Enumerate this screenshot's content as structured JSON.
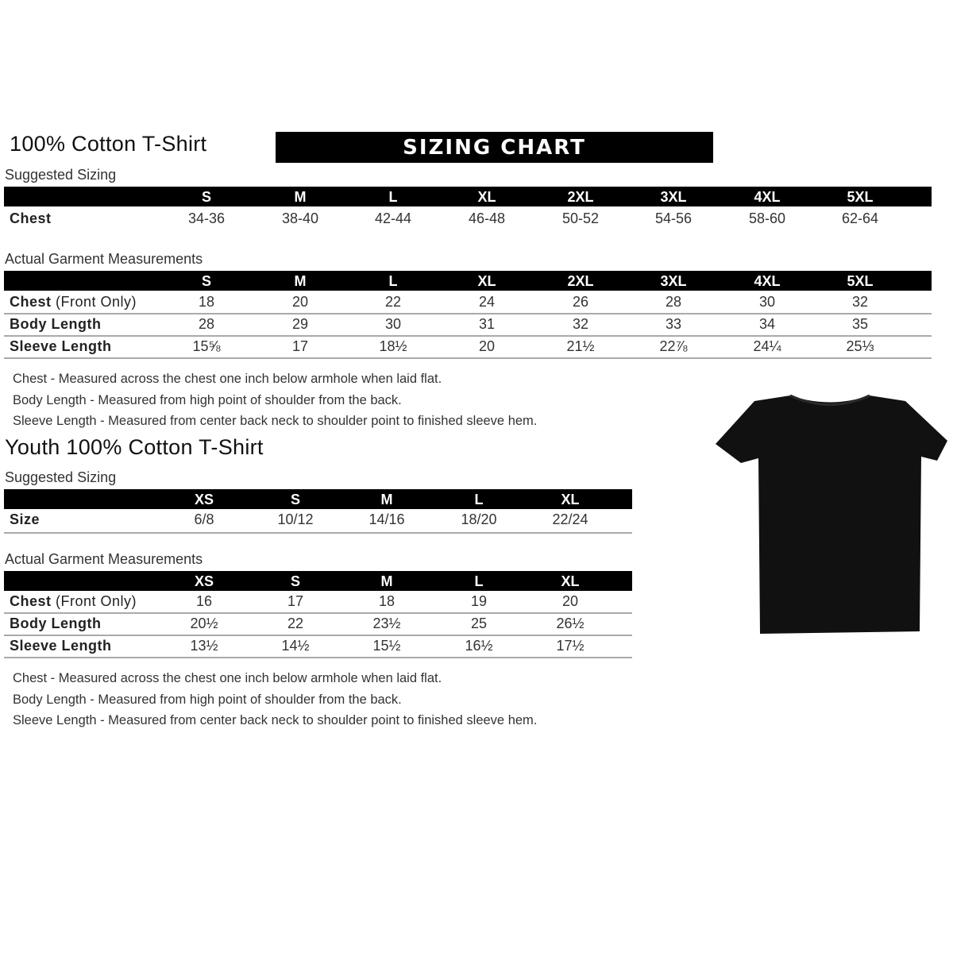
{
  "banner": "SIZING CHART",
  "adult": {
    "title": "100% Cotton T-Shirt",
    "suggested_label": "Suggested Sizing",
    "sizes": [
      "S",
      "M",
      "L",
      "XL",
      "2XL",
      "3XL",
      "4XL",
      "5XL"
    ],
    "chest": {
      "label": "Chest",
      "values": [
        "34-36",
        "38-40",
        "42-44",
        "46-48",
        "50-52",
        "54-56",
        "58-60",
        "62-64"
      ]
    },
    "actual_label": "Actual Garment Measurements",
    "rows": [
      {
        "label": "Chest",
        "label_note": " (Front Only)",
        "values": [
          "18",
          "20",
          "22",
          "24",
          "26",
          "28",
          "30",
          "32"
        ]
      },
      {
        "label": "Body Length",
        "label_note": "",
        "values": [
          "28",
          "29",
          "30",
          "31",
          "32",
          "33",
          "34",
          "35"
        ]
      },
      {
        "label": "Sleeve Length",
        "label_note": "",
        "values": [
          "15⅝",
          "17",
          "18½",
          "20",
          "21½",
          "22⅞",
          "24¼",
          "25⅓"
        ]
      }
    ],
    "notes": [
      "Chest - Measured across the chest one inch below armhole when laid flat.",
      "Body Length - Measured from high point of shoulder from the back.",
      "Sleeve Length - Measured from center back neck to shoulder point to finished sleeve hem."
    ]
  },
  "youth": {
    "title": "Youth 100% Cotton T-Shirt",
    "suggested_label": "Suggested Sizing",
    "sizes": [
      "XS",
      "S",
      "M",
      "L",
      "XL"
    ],
    "size_row": {
      "label": "Size",
      "values": [
        "6/8",
        "10/12",
        "14/16",
        "18/20",
        "22/24"
      ]
    },
    "actual_label": "Actual Garment Measurements",
    "rows": [
      {
        "label": "Chest",
        "label_note": " (Front Only)",
        "values": [
          "16",
          "17",
          "18",
          "19",
          "20"
        ]
      },
      {
        "label": "Body Length",
        "label_note": "",
        "values": [
          "20½",
          "22",
          "23½",
          "25",
          "26½"
        ]
      },
      {
        "label": "Sleeve Length",
        "label_note": "",
        "values": [
          "13½",
          "14½",
          "15½",
          "16½",
          "17½"
        ]
      }
    ],
    "notes": [
      "Chest - Measured across the chest one inch below armhole when laid flat.",
      "Body Length - Measured from high point of shoulder from the back.",
      "Sleeve Length - Measured from center back neck to shoulder point to finished sleeve hem."
    ]
  },
  "shirt_color": "#111111"
}
